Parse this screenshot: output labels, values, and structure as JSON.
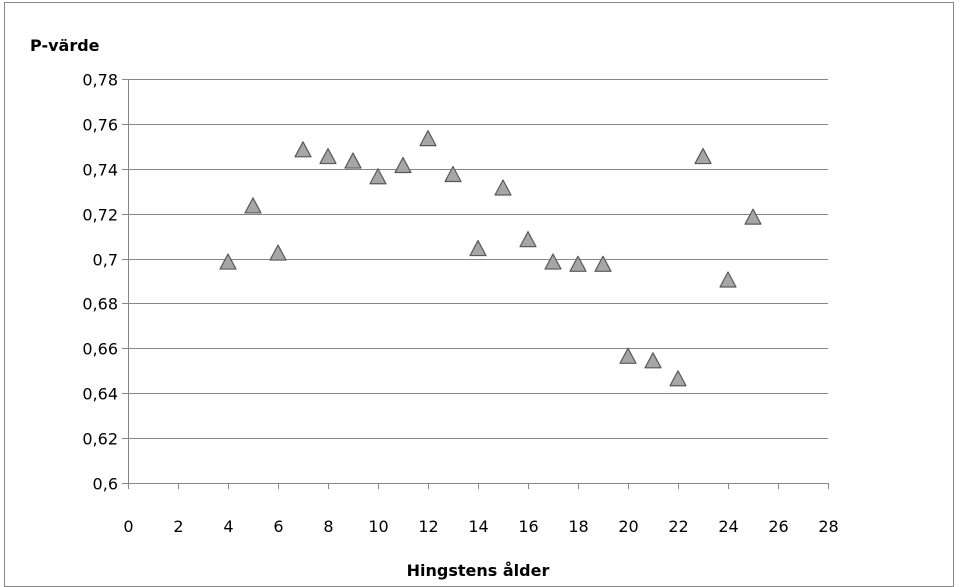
{
  "chart_data": {
    "type": "scatter",
    "title": "",
    "ylabel": "P-värde",
    "xlabel": "Hingstens ålder",
    "xlim": [
      0,
      28
    ],
    "ylim": [
      0.6,
      0.78
    ],
    "x_ticks": [
      0,
      2,
      4,
      6,
      8,
      10,
      12,
      14,
      16,
      18,
      20,
      22,
      24,
      26,
      28
    ],
    "x_tick_labels": [
      "0",
      "2",
      "4",
      "6",
      "8",
      "10",
      "12",
      "14",
      "16",
      "18",
      "20",
      "22",
      "24",
      "26",
      "28"
    ],
    "y_ticks": [
      0.6,
      0.62,
      0.64,
      0.66,
      0.68,
      0.7,
      0.72,
      0.74,
      0.76,
      0.78
    ],
    "y_tick_labels": [
      "0,6",
      "0,62",
      "0,64",
      "0,66",
      "0,68",
      "0,7",
      "0,72",
      "0,74",
      "0,76",
      "0,78"
    ],
    "grid": true,
    "legend": "none",
    "marker": "triangle",
    "marker_color": "#a6a6a6",
    "marker_edge_color": "#595959",
    "gridline_color": "#868686",
    "points": [
      {
        "x": 4,
        "y": 0.698
      },
      {
        "x": 5,
        "y": 0.723
      },
      {
        "x": 6,
        "y": 0.702
      },
      {
        "x": 7,
        "y": 0.748
      },
      {
        "x": 8,
        "y": 0.745
      },
      {
        "x": 9,
        "y": 0.743
      },
      {
        "x": 10,
        "y": 0.736
      },
      {
        "x": 11,
        "y": 0.741
      },
      {
        "x": 12,
        "y": 0.753
      },
      {
        "x": 13,
        "y": 0.737
      },
      {
        "x": 14,
        "y": 0.704
      },
      {
        "x": 15,
        "y": 0.731
      },
      {
        "x": 16,
        "y": 0.708
      },
      {
        "x": 17,
        "y": 0.698
      },
      {
        "x": 18,
        "y": 0.697
      },
      {
        "x": 19,
        "y": 0.697
      },
      {
        "x": 20,
        "y": 0.656
      },
      {
        "x": 21,
        "y": 0.654
      },
      {
        "x": 22,
        "y": 0.646
      },
      {
        "x": 23,
        "y": 0.745
      },
      {
        "x": 24,
        "y": 0.69
      },
      {
        "x": 25,
        "y": 0.718
      }
    ]
  }
}
